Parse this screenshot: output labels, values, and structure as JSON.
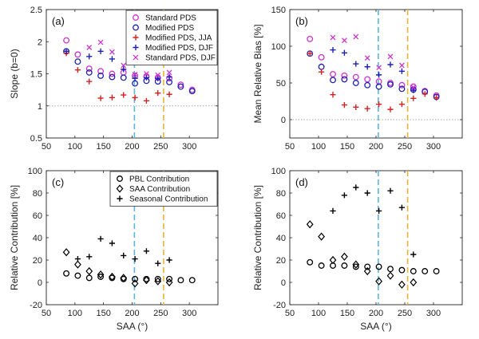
{
  "chart_data": [
    {
      "panel": "(a)",
      "type": "scatter",
      "ylabel": "Slope (b=0)",
      "xlabel": "",
      "xlim": [
        50,
        350
      ],
      "ylim": [
        0.5,
        2.5
      ],
      "xticks": [
        50,
        100,
        150,
        200,
        250,
        300
      ],
      "yticks": [
        0.5,
        1,
        1.5,
        2,
        2.5
      ],
      "ytick_labels": [
        "0.5",
        "1",
        "1.5",
        "2",
        "2.5"
      ],
      "ref_line": 1,
      "vlines": [
        {
          "x": 204,
          "color": "#5ab4e6"
        },
        {
          "x": 255,
          "color": "#e6b43a"
        }
      ],
      "legend_position": "top-right",
      "series": [
        {
          "name": "Standard PDS",
          "marker": "circle",
          "color": "#cc33cc",
          "x": [
            85,
            105,
            125,
            145,
            165,
            185,
            205,
            225,
            245,
            265,
            285,
            305
          ],
          "y": [
            2.02,
            1.8,
            1.58,
            1.54,
            1.5,
            1.52,
            1.47,
            1.46,
            1.44,
            1.43,
            1.33,
            1.25
          ]
        },
        {
          "name": "Modified PDS",
          "marker": "circle",
          "color": "#1f1fb4",
          "x": [
            85,
            105,
            125,
            145,
            165,
            185,
            205,
            225,
            245,
            265,
            285,
            305
          ],
          "y": [
            1.85,
            1.69,
            1.52,
            1.47,
            1.45,
            1.44,
            1.35,
            1.39,
            1.38,
            1.37,
            1.3,
            1.23
          ]
        },
        {
          "name": "Modified PDS, JJA",
          "marker": "plus",
          "color": "#d42020",
          "x": [
            85,
            105,
            125,
            145,
            165,
            185,
            205,
            225,
            245,
            265
          ],
          "y": [
            1.82,
            1.56,
            1.38,
            1.12,
            1.13,
            1.17,
            1.13,
            1.08,
            1.2,
            1.18
          ]
        },
        {
          "name": "Modified PDS, DJF",
          "marker": "plus",
          "color": "#1f1fb4",
          "x": [
            85,
            125,
            145,
            165,
            185,
            205,
            225,
            245,
            265
          ],
          "y": [
            1.85,
            1.77,
            1.85,
            1.73,
            1.57,
            1.43,
            1.44,
            1.43,
            1.45
          ]
        },
        {
          "name": "Standard PDS, DJF",
          "marker": "cross",
          "color": "#cc33cc",
          "x": [
            125,
            145,
            165,
            185,
            205,
            225,
            245,
            265
          ],
          "y": [
            1.91,
            1.99,
            1.84,
            1.63,
            1.49,
            1.5,
            1.48,
            1.52
          ]
        }
      ]
    },
    {
      "panel": "(b)",
      "type": "scatter",
      "ylabel": "Mean Relative Bias [%]",
      "xlabel": "",
      "xlim": [
        50,
        350
      ],
      "ylim": [
        -25,
        150
      ],
      "xticks": [
        50,
        100,
        150,
        200,
        250,
        300
      ],
      "yticks": [
        0,
        50,
        100,
        150
      ],
      "ytick_labels": [
        "0",
        "50",
        "100",
        "150"
      ],
      "ref_line": 0,
      "vlines": [
        {
          "x": 204,
          "color": "#5ab4e6"
        },
        {
          "x": 255,
          "color": "#e6b43a"
        }
      ],
      "series": [
        {
          "name": "Standard PDS",
          "marker": "circle",
          "color": "#cc33cc",
          "x": [
            85,
            105,
            125,
            145,
            165,
            185,
            205,
            225,
            245,
            265,
            285,
            305
          ],
          "y": [
            110,
            85,
            62,
            60,
            58,
            55,
            52,
            50,
            47,
            45,
            39,
            33
          ]
        },
        {
          "name": "Modified PDS",
          "marker": "circle",
          "color": "#1f1fb4",
          "x": [
            85,
            105,
            125,
            145,
            165,
            185,
            205,
            225,
            245,
            265,
            285,
            305
          ],
          "y": [
            90,
            72,
            54,
            55,
            50,
            47,
            45,
            48,
            42,
            41,
            38,
            31
          ]
        },
        {
          "name": "Modified PDS, JJA",
          "marker": "plus",
          "color": "#d42020",
          "x": [
            85,
            105,
            125,
            145,
            165,
            185,
            205,
            225,
            245,
            265,
            285,
            305
          ],
          "y": [
            90,
            65,
            34,
            20,
            17,
            15,
            21,
            14,
            21,
            29,
            35,
            30
          ]
        },
        {
          "name": "Modified PDS, DJF",
          "marker": "plus",
          "color": "#1f1fb4",
          "x": [
            125,
            145,
            165,
            185,
            205,
            225,
            245,
            265
          ],
          "y": [
            95,
            91,
            76,
            72,
            61,
            75,
            66,
            40
          ]
        },
        {
          "name": "Standard PDS, DJF",
          "marker": "cross",
          "color": "#cc33cc",
          "x": [
            125,
            145,
            165,
            185,
            205,
            225,
            245,
            265
          ],
          "y": [
            112,
            108,
            113,
            84,
            71,
            86,
            74,
            44
          ]
        }
      ]
    },
    {
      "panel": "(c)",
      "type": "scatter",
      "ylabel": "Relative Contribution [%]",
      "xlabel": "SAA (°)",
      "xlim": [
        50,
        350
      ],
      "ylim": [
        -20,
        100
      ],
      "xticks": [
        50,
        100,
        150,
        200,
        250,
        300
      ],
      "yticks": [
        -20,
        0,
        20,
        40,
        60,
        80,
        100
      ],
      "ytick_labels": [
        "-20",
        "0",
        "20",
        "40",
        "60",
        "80",
        "100"
      ],
      "vlines": [
        {
          "x": 204,
          "color": "#5ab4e6"
        },
        {
          "x": 255,
          "color": "#e6b43a"
        }
      ],
      "legend_position": "top-right",
      "series": [
        {
          "name": "PBL Contribution",
          "marker": "circle",
          "color": "#000000",
          "x": [
            85,
            105,
            125,
            145,
            165,
            185,
            205,
            225,
            245,
            265,
            285,
            305
          ],
          "y": [
            8,
            6,
            4,
            5,
            4,
            3,
            3,
            3,
            3,
            3,
            2,
            2
          ]
        },
        {
          "name": "SAA Contribution",
          "marker": "diamond",
          "color": "#000000",
          "x": [
            85,
            105,
            125,
            145,
            165,
            185,
            205,
            225,
            245,
            265
          ],
          "y": [
            27,
            16,
            10,
            7,
            5,
            4,
            -1,
            2,
            1,
            0
          ]
        },
        {
          "name": "Seasonal Contribution",
          "marker": "plus",
          "color": "#000000",
          "x": [
            105,
            125,
            145,
            165,
            185,
            205,
            225,
            245,
            265
          ],
          "y": [
            21,
            23,
            39,
            35,
            24,
            21,
            28,
            17,
            20
          ]
        }
      ]
    },
    {
      "panel": "(d)",
      "type": "scatter",
      "ylabel": "Relative Contribution [%]",
      "xlabel": "SAA (°)",
      "xlim": [
        50,
        350
      ],
      "ylim": [
        -20,
        100
      ],
      "xticks": [
        50,
        100,
        150,
        200,
        250,
        300
      ],
      "yticks": [
        -20,
        0,
        20,
        40,
        60,
        80,
        100
      ],
      "ytick_labels": [
        "-20",
        "0",
        "20",
        "40",
        "60",
        "80",
        "100"
      ],
      "vlines": [
        {
          "x": 204,
          "color": "#5ab4e6"
        },
        {
          "x": 255,
          "color": "#e6b43a"
        }
      ],
      "series": [
        {
          "name": "PBL Contribution",
          "marker": "circle",
          "color": "#000000",
          "x": [
            85,
            105,
            125,
            145,
            165,
            185,
            205,
            225,
            245,
            265,
            285,
            305
          ],
          "y": [
            18,
            15,
            15,
            15,
            14,
            14,
            14,
            12,
            11,
            10,
            10,
            10
          ]
        },
        {
          "name": "SAA Contribution",
          "marker": "diamond",
          "color": "#000000",
          "x": [
            85,
            105,
            125,
            145,
            165,
            185,
            205,
            225,
            245,
            265
          ],
          "y": [
            52,
            41,
            20,
            23,
            16,
            10,
            1,
            6,
            -2,
            0
          ]
        },
        {
          "name": "Seasonal Contribution",
          "marker": "plus",
          "color": "#000000",
          "x": [
            125,
            145,
            165,
            185,
            205,
            225,
            245,
            265
          ],
          "y": [
            64,
            78,
            85,
            80,
            64,
            82,
            67,
            25
          ]
        }
      ]
    }
  ]
}
